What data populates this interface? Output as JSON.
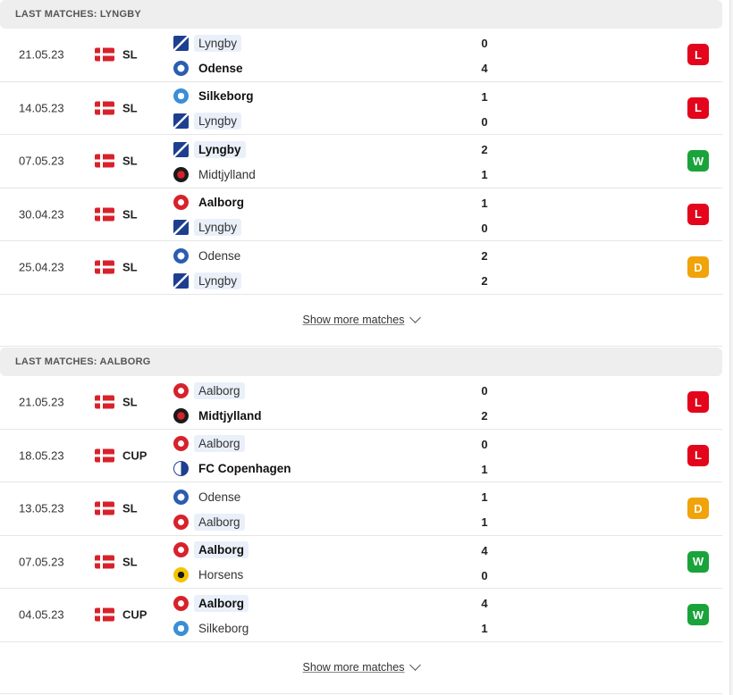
{
  "colors": {
    "loss": "#e3051b",
    "win": "#1aa33a",
    "draw": "#f0a30a"
  },
  "teams": {
    "Lyngby": {
      "icon": "lyngby-crest-icon"
    },
    "Odense": {
      "icon": "odense-crest-icon"
    },
    "Silkeborg": {
      "icon": "silkeborg-crest-icon"
    },
    "Midtjylland": {
      "icon": "midtjylland-crest-icon"
    },
    "Aalborg": {
      "icon": "aalborg-crest-icon"
    },
    "FC Copenhagen": {
      "icon": "copenhagen-crest-icon"
    },
    "Horsens": {
      "icon": "horsens-crest-icon"
    }
  },
  "sections": [
    {
      "title": "LAST MATCHES: LYNGBY",
      "focus_team": "Lyngby",
      "show_more": "Show more matches",
      "matches": [
        {
          "date": "21.05.23",
          "country": "denmark-flag-icon",
          "competition": "SL",
          "home": "Lyngby",
          "away": "Odense",
          "home_score": "0",
          "away_score": "4",
          "result": "L"
        },
        {
          "date": "14.05.23",
          "country": "denmark-flag-icon",
          "competition": "SL",
          "home": "Silkeborg",
          "away": "Lyngby",
          "home_score": "1",
          "away_score": "0",
          "result": "L"
        },
        {
          "date": "07.05.23",
          "country": "denmark-flag-icon",
          "competition": "SL",
          "home": "Lyngby",
          "away": "Midtjylland",
          "home_score": "2",
          "away_score": "1",
          "result": "W"
        },
        {
          "date": "30.04.23",
          "country": "denmark-flag-icon",
          "competition": "SL",
          "home": "Aalborg",
          "away": "Lyngby",
          "home_score": "1",
          "away_score": "0",
          "result": "L"
        },
        {
          "date": "25.04.23",
          "country": "denmark-flag-icon",
          "competition": "SL",
          "home": "Odense",
          "away": "Lyngby",
          "home_score": "2",
          "away_score": "2",
          "result": "D"
        }
      ]
    },
    {
      "title": "LAST MATCHES: AALBORG",
      "focus_team": "Aalborg",
      "show_more": "Show more matches",
      "matches": [
        {
          "date": "21.05.23",
          "country": "denmark-flag-icon",
          "competition": "SL",
          "home": "Aalborg",
          "away": "Midtjylland",
          "home_score": "0",
          "away_score": "2",
          "result": "L"
        },
        {
          "date": "18.05.23",
          "country": "denmark-flag-icon",
          "competition": "CUP",
          "home": "Aalborg",
          "away": "FC Copenhagen",
          "home_score": "0",
          "away_score": "1",
          "result": "L"
        },
        {
          "date": "13.05.23",
          "country": "denmark-flag-icon",
          "competition": "SL",
          "home": "Odense",
          "away": "Aalborg",
          "home_score": "1",
          "away_score": "1",
          "result": "D"
        },
        {
          "date": "07.05.23",
          "country": "denmark-flag-icon",
          "competition": "SL",
          "home": "Aalborg",
          "away": "Horsens",
          "home_score": "4",
          "away_score": "0",
          "result": "W"
        },
        {
          "date": "04.05.23",
          "country": "denmark-flag-icon",
          "competition": "CUP",
          "home": "Aalborg",
          "away": "Silkeborg",
          "home_score": "4",
          "away_score": "1",
          "result": "W"
        }
      ]
    }
  ]
}
